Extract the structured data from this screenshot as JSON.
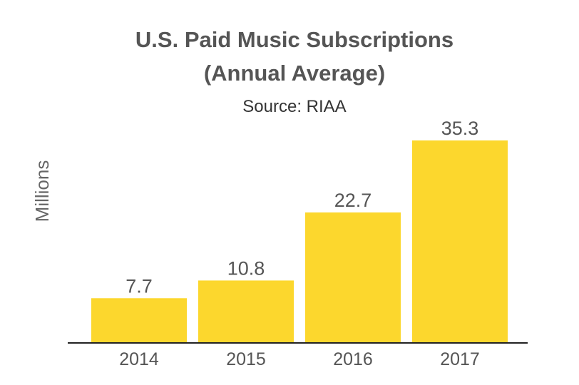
{
  "chart_data": {
    "type": "bar",
    "title_lines": [
      "U.S. Paid Music Subscriptions",
      "(Annual Average)"
    ],
    "subtitle": "Source: RIAA",
    "xlabel": "",
    "ylabel": "Millions",
    "categories": [
      "2014",
      "2015",
      "2016",
      "2017"
    ],
    "values": [
      7.7,
      10.8,
      22.7,
      35.3
    ],
    "data_labels": [
      "7.7",
      "10.8",
      "22.7",
      "35.3"
    ],
    "ylim": [
      0,
      35.3
    ],
    "grid": false,
    "legend": "none",
    "bar_color": "#FCD72D",
    "axis_color": "#222222"
  }
}
